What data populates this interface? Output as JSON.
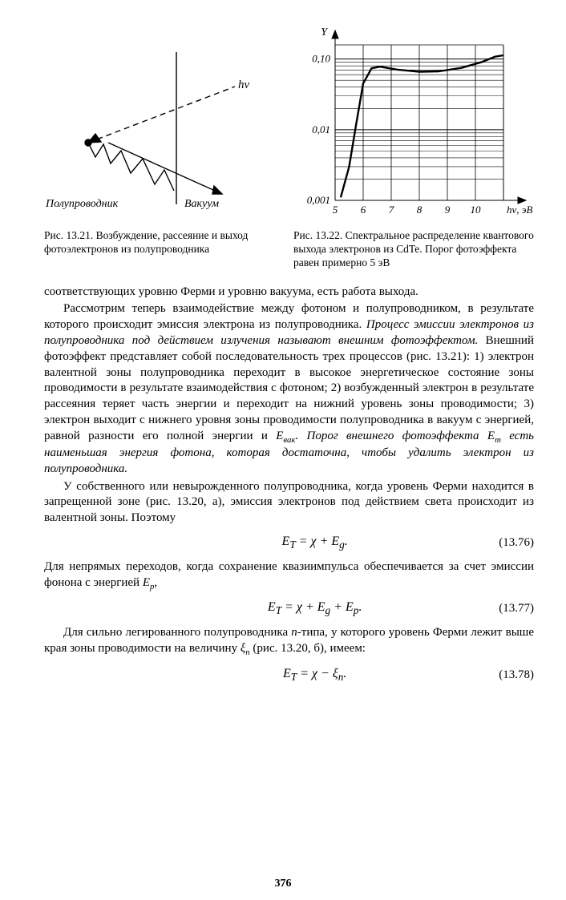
{
  "fig_left": {
    "labels": {
      "hv": "hν",
      "semiconductor": "Полупроводник",
      "vacuum": "Вакуум"
    },
    "caption": "Рис. 13.21. Возбуждение, рассеяние и выход фотоэлектронов из полупроводника",
    "stroke": "#000000",
    "stroke_width": 1.4
  },
  "fig_right": {
    "axis": {
      "y_label": "Y",
      "x_label": "hν, эВ",
      "x_ticks": [
        "5",
        "6",
        "7",
        "8",
        "9",
        "10"
      ],
      "y_ticks": [
        "0,001",
        "0,01",
        "0,10"
      ],
      "x_range": [
        5,
        11
      ],
      "y_range_log": [
        -3,
        -0.8
      ]
    },
    "series": {
      "points": [
        [
          5.2,
          0.0011
        ],
        [
          5.5,
          0.003
        ],
        [
          5.75,
          0.012
        ],
        [
          6.0,
          0.045
        ],
        [
          6.3,
          0.074
        ],
        [
          6.6,
          0.078
        ],
        [
          7.2,
          0.071
        ],
        [
          8.0,
          0.066
        ],
        [
          8.7,
          0.067
        ],
        [
          9.5,
          0.075
        ],
        [
          10.2,
          0.09
        ],
        [
          10.7,
          0.108
        ],
        [
          11.0,
          0.113
        ]
      ],
      "stroke": "#000000",
      "stroke_width": 2.4
    },
    "grid_color": "#000000",
    "caption": "Рис. 13.22. Спектральное распределение квантового выхода электронов из CdTe. Порог фотоэффекта равен примерно 5 эВ"
  },
  "paragraphs": {
    "p1": "соответствующих уровню Ферми и уровню вакуума, есть работа выхода.",
    "p2a": "Рассмотрим теперь взаимодействие между фотоном и полупроводником, в результате которого происходит эмиссия электрона из полупроводника. ",
    "p2b": "Процесс эмиссии электронов из полупроводника под действием излучения называют внешним фотоэффектом.",
    "p2c": " Внешний фотоэффект представляет собой последовательность трех процессов (рис. 13.21): 1) электрон валентной зоны полупроводника переходит в высокое энергетическое состояние зоны проводимости в результате взаимодействия с фотоном; 2) возбужденный электрон в результате рассеяния теряет часть энергии и переходит на нижний уровень зоны проводимости; 3) электрон выходит с нижнего уровня зоны проводимости полупроводника в вакуум с энергией, равной разности его полной энергии и ",
    "p2d": ". Порог внешнего фотоэффекта E",
    "p2e": " есть наименьшая энергия фотона, которая достаточна, чтобы удалить электрон из полупроводника.",
    "p3": "У собственного или невырожденного полупроводника, когда уровень Ферми находится в запрещенной зоне (рис. 13.20, а), эмиссия электронов под действием света происходит из валентной зоны. Поэтому",
    "p4": "Для непрямых переходов, когда сохранение квазиимпульса обеспечивается за счет эмиссии фонона с энергией ",
    "p5a": "Для сильно легированного полупроводника ",
    "p5b": "n",
    "p5c": "-типа, у которого уровень Ферми лежит выше края зоны проводимости на величину ",
    "p5d": " (рис. 13.20, б), имеем:"
  },
  "symbols": {
    "E_vak": "E",
    "vak_sub": "вак",
    "T_sub": "т",
    "Ep": "E",
    "p_sub": "p",
    "xi_n": "ξ",
    "n_sub": "n"
  },
  "equations": {
    "eq1": {
      "text": "E_T = χ + E_g.",
      "num": "(13.76)"
    },
    "eq2": {
      "text": "E_T = χ + E_g + E_p.",
      "num": "(13.77)"
    },
    "eq3": {
      "text": "E_T = χ − ξ_n.",
      "num": "(13.78)"
    }
  },
  "page_number": "376"
}
